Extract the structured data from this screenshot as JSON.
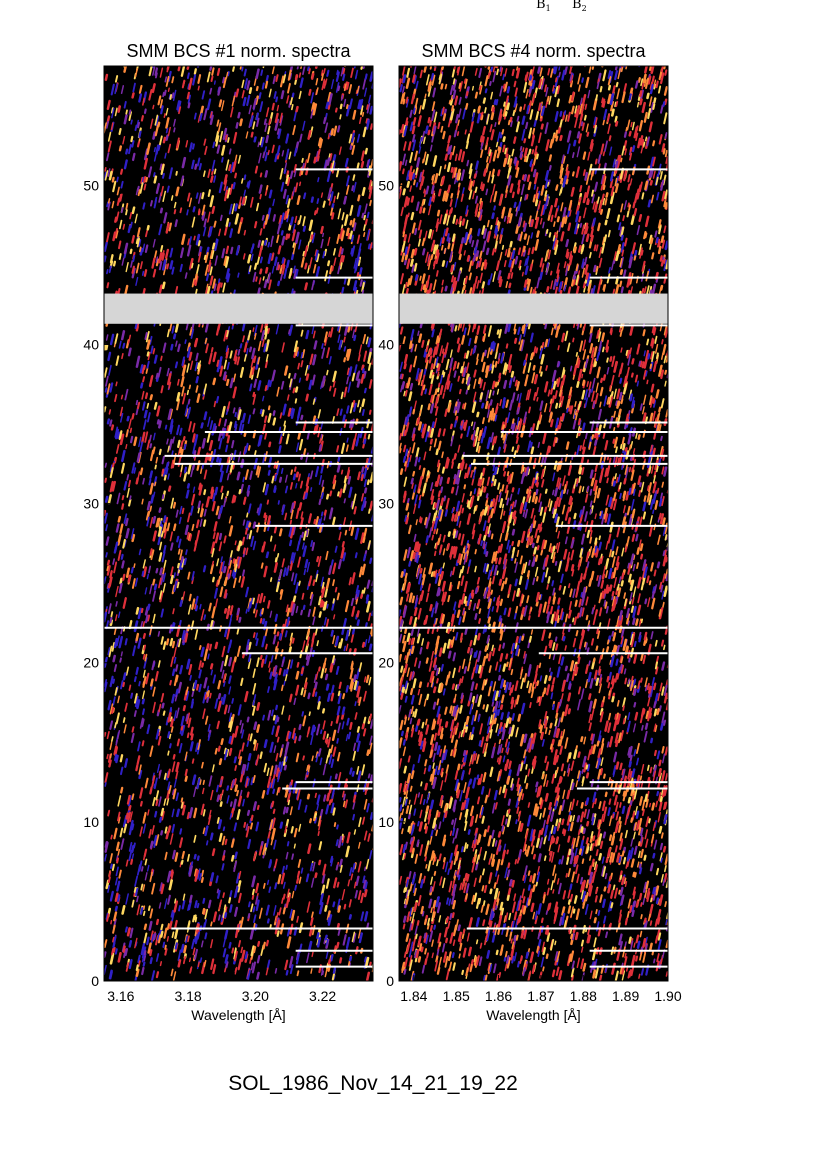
{
  "footer_label": "SOL_1986_Nov_14_21_19_22",
  "header_markers": [
    {
      "symbol": "B",
      "subscript": "1"
    },
    {
      "symbol": "B",
      "subscript": "2"
    }
  ],
  "colors": {
    "background_dark": "#000000",
    "speckle_blue": "#3020c8",
    "speckle_purple": "#7a2aa8",
    "speckle_red": "#e0303a",
    "speckle_orange": "#ff8a3a",
    "speckle_yellow": "#ffd860",
    "gap_gray": "#d6d6d6",
    "flag_line": "#ffffff"
  },
  "chart_data": [
    {
      "type": "heatmap",
      "title": "SMM BCS #1 norm. spectra",
      "xlabel": "Wavelength [Å]",
      "ylabel": "",
      "xlim": [
        3.155,
        3.235
      ],
      "ylim": [
        0,
        57.5
      ],
      "x_ticks": [
        3.16,
        3.18,
        3.2,
        3.22
      ],
      "x_tick_labels": [
        "3.16",
        "3.18",
        "3.20",
        "3.22"
      ],
      "y_ticks": [
        0,
        10,
        20,
        30,
        40,
        50
      ],
      "y_tick_labels": [
        "0",
        "10",
        "20",
        "30",
        "40",
        "50"
      ],
      "colormap": "black-blue-purple-red-orange-yellow",
      "intensity_profile": "sparse",
      "data_gap_y": [
        41.3,
        43.2
      ],
      "flagged_rows": [
        {
          "y": 0.9,
          "x0": 3.212
        },
        {
          "y": 1.9,
          "x0": 3.212
        },
        {
          "y": 3.3,
          "x0": 3.175
        },
        {
          "y": 12.1,
          "x0": 3.208
        },
        {
          "y": 12.5,
          "x0": 3.212
        },
        {
          "y": 20.6,
          "x0": 3.196
        },
        {
          "y": 22.2,
          "x0": 3.155
        },
        {
          "y": 28.6,
          "x0": 3.2
        },
        {
          "y": 32.5,
          "x0": 3.176
        },
        {
          "y": 33.0,
          "x0": 3.173
        },
        {
          "y": 34.5,
          "x0": 3.185
        },
        {
          "y": 35.1,
          "x0": 3.212
        },
        {
          "y": 41.2,
          "x0": 3.212
        },
        {
          "y": 44.2,
          "x0": 3.212
        },
        {
          "y": 51.0,
          "x0": 3.212
        }
      ]
    },
    {
      "type": "heatmap",
      "title": "SMM BCS #4 norm. spectra",
      "xlabel": "Wavelength [Å]",
      "ylabel": "",
      "xlim": [
        1.8365,
        1.9
      ],
      "ylim": [
        0,
        57.5
      ],
      "x_ticks": [
        1.84,
        1.85,
        1.86,
        1.87,
        1.88,
        1.89,
        1.9
      ],
      "x_tick_labels": [
        "1.84",
        "1.85",
        "1.86",
        "1.87",
        "1.88",
        "1.89",
        "1.90"
      ],
      "y_ticks": [
        0,
        10,
        20,
        30,
        40,
        50
      ],
      "y_tick_labels": [
        "0",
        "10",
        "20",
        "30",
        "40",
        "50"
      ],
      "colormap": "black-blue-purple-red-orange-yellow",
      "intensity_profile": "dense",
      "data_gap_y": [
        41.3,
        43.2
      ],
      "flagged_rows": [
        {
          "y": 0.9,
          "x0": 1.8815
        },
        {
          "y": 1.9,
          "x0": 1.8815
        },
        {
          "y": 3.3,
          "x0": 1.8525
        },
        {
          "y": 12.1,
          "x0": 1.8785
        },
        {
          "y": 12.5,
          "x0": 1.8815
        },
        {
          "y": 20.6,
          "x0": 1.8695
        },
        {
          "y": 22.2,
          "x0": 1.8365
        },
        {
          "y": 28.6,
          "x0": 1.8735
        },
        {
          "y": 32.5,
          "x0": 1.8535
        },
        {
          "y": 33.0,
          "x0": 1.8515
        },
        {
          "y": 34.5,
          "x0": 1.8605
        },
        {
          "y": 35.1,
          "x0": 1.8815
        },
        {
          "y": 41.2,
          "x0": 1.8815
        },
        {
          "y": 44.2,
          "x0": 1.8815
        },
        {
          "y": 51.0,
          "x0": 1.8815
        }
      ]
    }
  ]
}
